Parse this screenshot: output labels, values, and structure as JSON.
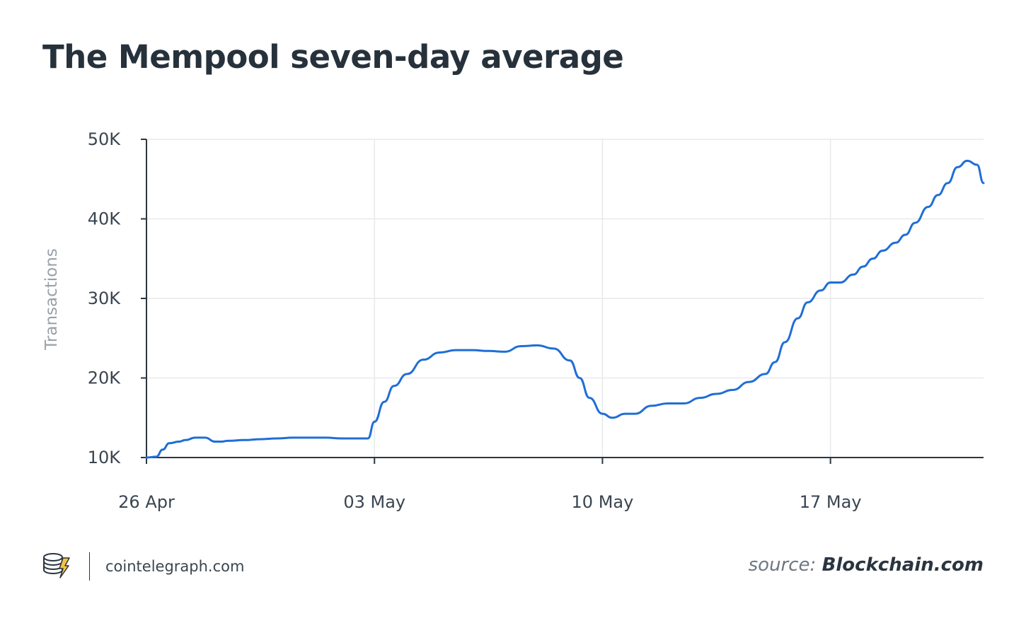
{
  "chart_data": {
    "type": "line",
    "title": "The Mempool seven-day average",
    "xlabel": "",
    "ylabel": "Transactions",
    "ylim": [
      10000,
      50000
    ],
    "yticks": [
      {
        "value": 10000,
        "label": "10K"
      },
      {
        "value": 20000,
        "label": "20K"
      },
      {
        "value": 30000,
        "label": "30K"
      },
      {
        "value": 40000,
        "label": "40K"
      },
      {
        "value": 50000,
        "label": "50K"
      }
    ],
    "xlim": [
      0,
      25.7
    ],
    "xticks": [
      {
        "value": 0,
        "label": "26 Apr"
      },
      {
        "value": 7,
        "label": "03 May"
      },
      {
        "value": 14,
        "label": "10 May"
      },
      {
        "value": 21,
        "label": "17 May"
      }
    ],
    "grid": true,
    "series": [
      {
        "name": "Mempool seven-day average",
        "color": "#1f6ed6",
        "x": [
          0,
          0.3,
          0.5,
          0.7,
          1.0,
          1.2,
          1.5,
          1.8,
          2.1,
          2.3,
          2.5,
          3.0,
          3.5,
          4.0,
          4.5,
          5.0,
          5.5,
          6.0,
          6.5,
          6.8,
          7.0,
          7.3,
          7.6,
          8.0,
          8.5,
          9.0,
          9.5,
          10.0,
          10.5,
          11.0,
          11.5,
          12.0,
          12.5,
          13.0,
          13.3,
          13.6,
          14.0,
          14.3,
          14.7,
          15.0,
          15.5,
          16.0,
          16.5,
          17.0,
          17.5,
          18.0,
          18.5,
          19.0,
          19.3,
          19.6,
          20.0,
          20.3,
          20.7,
          21.0,
          21.3,
          21.7,
          22.0,
          22.3,
          22.6,
          23.0,
          23.3,
          23.6,
          24.0,
          24.3,
          24.6,
          24.9,
          25.2,
          25.5,
          25.7
        ],
        "values": [
          10000,
          10100,
          11000,
          11800,
          12000,
          12200,
          12500,
          12500,
          12000,
          12000,
          12100,
          12200,
          12300,
          12400,
          12500,
          12500,
          12500,
          12400,
          12400,
          12400,
          14500,
          17000,
          19000,
          20500,
          22300,
          23200,
          23500,
          23500,
          23400,
          23300,
          24000,
          24100,
          23700,
          22200,
          20000,
          17500,
          15500,
          15000,
          15500,
          15500,
          16500,
          16800,
          16800,
          17500,
          18000,
          18500,
          19500,
          20500,
          22000,
          24500,
          27500,
          29500,
          31000,
          32000,
          32000,
          33000,
          34000,
          35000,
          36000,
          37000,
          38000,
          39500,
          41500,
          43000,
          44500,
          46500,
          47300,
          46800,
          44500
        ]
      }
    ]
  },
  "footer": {
    "brand": "cointelegraph.com",
    "source_label": "source:",
    "source_name": "Blockchain.com",
    "logo_icon": "coin-stack-bolt-icon"
  }
}
